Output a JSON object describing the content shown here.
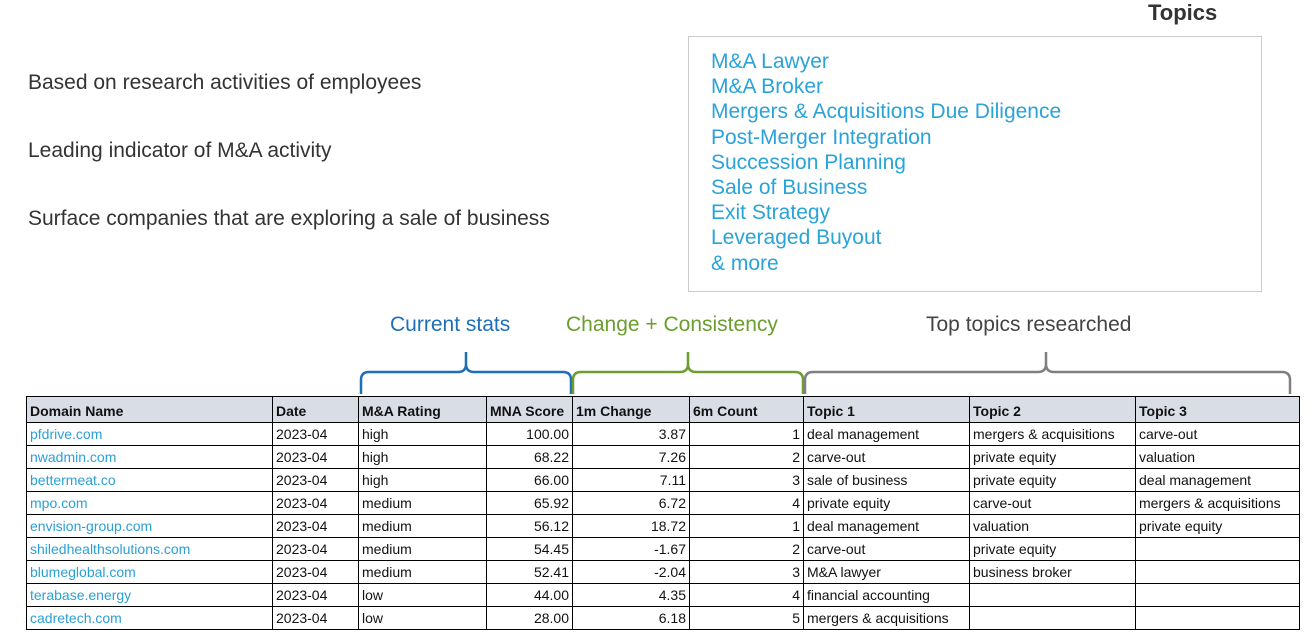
{
  "bullets": [
    "Based on research activities of employees",
    "Leading indicator of M&A activity",
    "Surface companies that are exploring a sale of business"
  ],
  "topics_panel": {
    "title": "Topics",
    "items": [
      "M&A Lawyer",
      "M&A Broker",
      "Mergers & Acquisitions Due Diligence",
      "Post-Merger Integration",
      "Succession Planning",
      "Sale of Business",
      "Exit Strategy",
      "Leveraged Buyout",
      "& more"
    ]
  },
  "section_labels": {
    "current": "Current stats",
    "change": "Change + Consistency",
    "topics": "Top topics researched"
  },
  "colors": {
    "topic_link": "#29a3d8",
    "current_stats": "#1e6fb8",
    "change": "#6b9e2e",
    "top_topics": "#808080",
    "header_bg": "#d9dde6"
  },
  "table": {
    "headers": [
      "Domain Name",
      "Date",
      "M&A Rating",
      "MNA Score",
      "1m Change",
      "6m Count",
      "Topic 1",
      "Topic 2",
      "Topic 3"
    ],
    "rows": [
      [
        "pfdrive.com",
        "2023-04",
        "high",
        "100.00",
        "3.87",
        "1",
        "deal management",
        "mergers & acquisitions",
        "carve-out"
      ],
      [
        "nwadmin.com",
        "2023-04",
        "high",
        "68.22",
        "7.26",
        "2",
        "carve-out",
        "private equity",
        "valuation"
      ],
      [
        "bettermeat.co",
        "2023-04",
        "high",
        "66.00",
        "7.11",
        "3",
        "sale of business",
        "private equity",
        "deal management"
      ],
      [
        "mpo.com",
        "2023-04",
        "medium",
        "65.92",
        "6.72",
        "4",
        "private equity",
        "carve-out",
        "mergers & acquisitions"
      ],
      [
        "envision-group.com",
        "2023-04",
        "medium",
        "56.12",
        "18.72",
        "1",
        "deal management",
        "valuation",
        "private equity"
      ],
      [
        "shiledhealthsolutions.com",
        "2023-04",
        "medium",
        "54.45",
        "-1.67",
        "2",
        "carve-out",
        "private equity",
        ""
      ],
      [
        "blumeglobal.com",
        "2023-04",
        "medium",
        "52.41",
        "-2.04",
        "3",
        "M&A lawyer",
        "business broker",
        ""
      ],
      [
        "terabase.energy",
        "2023-04",
        "low",
        "44.00",
        "4.35",
        "4",
        "financial accounting",
        "",
        ""
      ],
      [
        "cadretech.com",
        "2023-04",
        "low",
        "28.00",
        "6.18",
        "5",
        "mergers & acquisitions",
        "",
        ""
      ]
    ]
  }
}
